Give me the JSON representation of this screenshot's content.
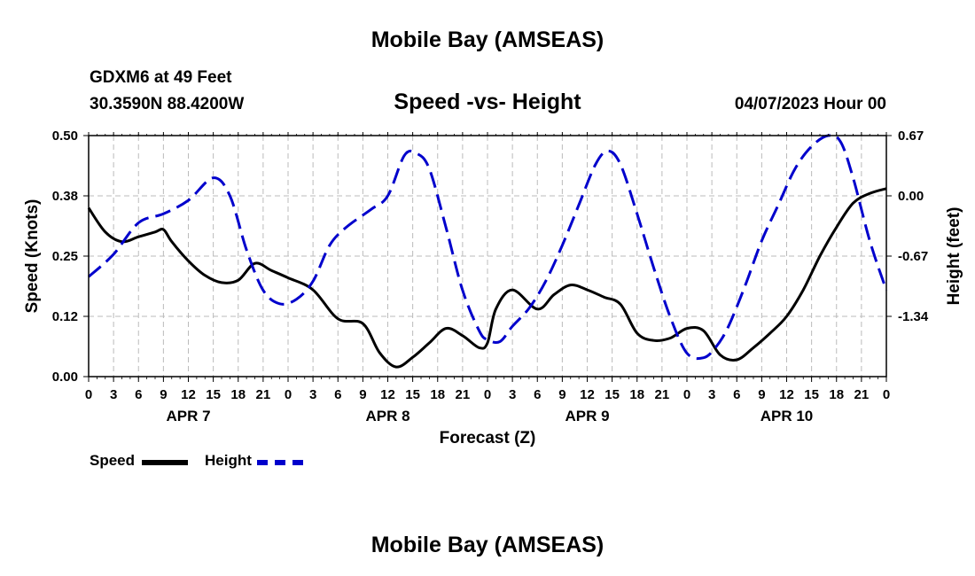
{
  "header": {
    "title": "Mobile Bay (AMSEAS)",
    "station": "GDXM6 at 49 Feet",
    "coordinates": "30.3590N  88.4200W",
    "subtitle": "Speed -vs- Height",
    "datetime": "04/07/2023 Hour 00"
  },
  "footer": {
    "title": "Mobile Bay (AMSEAS)"
  },
  "legend": [
    {
      "label": "Speed",
      "color": "#000000",
      "style": "solid"
    },
    {
      "label": "Height",
      "color": "#0000cc",
      "style": "dashed"
    }
  ],
  "chart_data": {
    "type": "line",
    "title": "Speed -vs- Height",
    "xlabel": "Forecast (Z)",
    "ylabel_left": "Speed (Knots)",
    "ylabel_right": "Height (feet)",
    "x_range_hours": [
      0,
      96
    ],
    "x_tick_labels": [
      "0",
      "3",
      "6",
      "9",
      "12",
      "15",
      "18",
      "21",
      "0",
      "3",
      "6",
      "9",
      "12",
      "15",
      "18",
      "21",
      "0",
      "3",
      "6",
      "9",
      "12",
      "15",
      "18",
      "21",
      "0",
      "3",
      "6",
      "9",
      "12",
      "15",
      "18",
      "21",
      "0"
    ],
    "day_labels": [
      {
        "label": "APR 7",
        "hour": 12
      },
      {
        "label": "APR 8",
        "hour": 36
      },
      {
        "label": "APR 9",
        "hour": 60
      },
      {
        "label": "APR 10",
        "hour": 84
      }
    ],
    "y_left": {
      "range": [
        0,
        0.5
      ],
      "ticks": [
        "0.00",
        "0.12",
        "0.25",
        "0.38",
        "0.50"
      ]
    },
    "y_right": {
      "range": [
        -2.01,
        0.67
      ],
      "ticks": [
        "-1.34",
        "-0.67",
        "0.00",
        "0.67"
      ]
    },
    "grid": true,
    "series": [
      {
        "name": "Speed",
        "axis": "left",
        "color": "#000000",
        "style": "solid",
        "x": [
          0,
          2,
          4,
          6,
          8,
          9,
          10,
          12,
          14,
          16,
          18,
          20,
          22,
          24,
          27,
          30,
          33,
          35,
          37,
          39,
          41,
          43,
          45,
          47,
          48,
          49,
          51,
          54,
          56,
          58,
          60,
          62,
          64,
          66,
          68,
          70,
          72,
          74,
          76,
          78,
          80,
          82,
          84,
          86,
          88,
          90,
          92,
          94,
          96
        ],
        "y": [
          0.35,
          0.3,
          0.28,
          0.29,
          0.3,
          0.305,
          0.28,
          0.24,
          0.21,
          0.195,
          0.2,
          0.235,
          0.22,
          0.205,
          0.18,
          0.12,
          0.11,
          0.05,
          0.02,
          0.04,
          0.07,
          0.1,
          0.085,
          0.06,
          0.07,
          0.14,
          0.18,
          0.14,
          0.17,
          0.19,
          0.18,
          0.165,
          0.15,
          0.09,
          0.075,
          0.08,
          0.1,
          0.095,
          0.045,
          0.035,
          0.06,
          0.09,
          0.125,
          0.18,
          0.25,
          0.31,
          0.36,
          0.38,
          0.39
        ]
      },
      {
        "name": "Height",
        "axis": "right",
        "color": "#0000cc",
        "style": "dashed",
        "x": [
          0,
          3,
          6,
          9,
          12,
          15,
          17,
          19,
          21,
          23,
          25,
          27,
          29,
          31,
          34,
          36,
          38,
          39.5,
          41,
          43,
          45,
          47,
          48,
          49.5,
          51,
          53,
          55,
          57,
          59,
          61,
          62.5,
          64,
          66,
          68,
          70,
          72,
          74,
          75.5,
          77,
          79,
          81,
          83,
          85,
          87,
          89,
          90.5,
          92,
          94,
          96
        ],
        "y": [
          -0.9,
          -0.65,
          -0.3,
          -0.2,
          -0.05,
          0.2,
          0.0,
          -0.6,
          -1.05,
          -1.2,
          -1.15,
          -0.95,
          -0.55,
          -0.35,
          -0.15,
          0.0,
          0.45,
          0.47,
          0.3,
          -0.35,
          -1.05,
          -1.5,
          -1.6,
          -1.62,
          -1.45,
          -1.25,
          -0.95,
          -0.55,
          -0.1,
          0.35,
          0.5,
          0.35,
          -0.2,
          -0.8,
          -1.35,
          -1.75,
          -1.8,
          -1.68,
          -1.45,
          -1.0,
          -0.5,
          -0.1,
          0.3,
          0.55,
          0.67,
          0.6,
          0.2,
          -0.5,
          -1.05
        ]
      }
    ]
  }
}
